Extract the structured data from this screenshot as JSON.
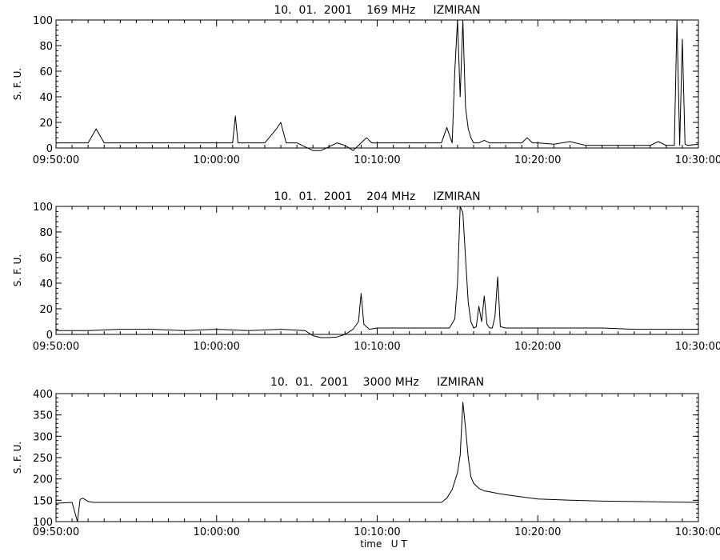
{
  "chart_data": [
    {
      "type": "line",
      "title": "10.  01.  2001    169 MHz     IZMIRAN",
      "ylabel": "S. F. U.",
      "xlabel": "",
      "ylim": [
        0,
        100
      ],
      "yticks": [
        0,
        20,
        40,
        60,
        80,
        100
      ],
      "xlim": [
        "09:50:00",
        "10:30:00"
      ],
      "xtick_labels": [
        "09:50:00",
        "10:00:00",
        "10:10:00",
        "10:20:00",
        "10:30:00"
      ],
      "series": [
        {
          "x": [
            "09:50:00",
            "09:51:00",
            "09:52:00",
            "09:52:30",
            "09:53:00",
            "09:55:00",
            "10:00:00",
            "10:01:00",
            "10:01:10",
            "10:01:20",
            "10:03:00",
            "10:03:40",
            "10:04:00",
            "10:04:20",
            "10:05:00",
            "10:05:30",
            "10:06:00",
            "10:06:30",
            "10:07:00",
            "10:07:30",
            "10:08:00",
            "10:08:30",
            "10:09:00",
            "10:09:20",
            "10:09:40",
            "10:10:00",
            "10:12:00",
            "10:14:00",
            "10:14:20",
            "10:14:40",
            "10:14:50",
            "10:15:00",
            "10:15:10",
            "10:15:20",
            "10:15:30",
            "10:15:40",
            "10:15:50",
            "10:16:00",
            "10:16:20",
            "10:16:40",
            "10:17:00",
            "10:18:00",
            "10:19:00",
            "10:19:20",
            "10:19:40",
            "10:20:00",
            "10:21:00",
            "10:22:00",
            "10:23:00",
            "10:25:00",
            "10:27:00",
            "10:27:30",
            "10:28:00",
            "10:28:30",
            "10:28:40",
            "10:28:50",
            "10:29:00",
            "10:29:10",
            "10:29:20",
            "10:30:00"
          ],
          "values": [
            4,
            4,
            4,
            15,
            4,
            4,
            4,
            4,
            25,
            4,
            4,
            14,
            20,
            4,
            4,
            1,
            -2,
            -2,
            1,
            4,
            2,
            -2,
            4,
            8,
            4,
            4,
            4,
            4,
            16,
            4,
            60,
            100,
            40,
            100,
            32,
            15,
            8,
            4,
            4,
            6,
            4,
            4,
            4,
            8,
            4,
            4,
            3,
            5,
            2,
            2,
            2,
            5,
            2,
            2,
            100,
            2,
            85,
            3,
            2,
            3
          ]
        }
      ]
    },
    {
      "type": "line",
      "title": "10.  01.  2001    204 MHz     IZMIRAN",
      "ylabel": "S. F. U.",
      "xlabel": "",
      "ylim": [
        0,
        100
      ],
      "yticks": [
        0,
        20,
        40,
        60,
        80,
        100
      ],
      "xlim": [
        "09:50:00",
        "10:30:00"
      ],
      "xtick_labels": [
        "09:50:00",
        "10:00:00",
        "10:10:00",
        "10:20:00",
        "10:30:00"
      ],
      "series": [
        {
          "x": [
            "09:50:00",
            "09:52:00",
            "09:54:00",
            "09:56:00",
            "09:58:00",
            "10:00:00",
            "10:02:00",
            "10:04:00",
            "10:05:30",
            "10:06:00",
            "10:06:30",
            "10:07:00",
            "10:07:30",
            "10:08:00",
            "10:08:30",
            "10:08:50",
            "10:09:00",
            "10:09:10",
            "10:09:30",
            "10:10:00",
            "10:11:00",
            "10:12:00",
            "10:13:00",
            "10:14:00",
            "10:14:30",
            "10:14:50",
            "10:15:00",
            "10:15:10",
            "10:15:20",
            "10:15:30",
            "10:15:40",
            "10:15:50",
            "10:16:00",
            "10:16:10",
            "10:16:20",
            "10:16:30",
            "10:16:40",
            "10:16:50",
            "10:17:00",
            "10:17:10",
            "10:17:20",
            "10:17:30",
            "10:17:40",
            "10:18:00",
            "10:19:00",
            "10:20:00",
            "10:22:00",
            "10:24:00",
            "10:26:00",
            "10:28:00",
            "10:30:00"
          ],
          "values": [
            3,
            3,
            4,
            4,
            3,
            4,
            3,
            4,
            3,
            -1,
            -3,
            -3,
            -2,
            0,
            4,
            10,
            32,
            8,
            4,
            5,
            5,
            5,
            5,
            5,
            5,
            12,
            40,
            100,
            95,
            60,
            25,
            10,
            5,
            6,
            22,
            10,
            30,
            8,
            5,
            5,
            14,
            45,
            6,
            5,
            5,
            5,
            5,
            5,
            4,
            4,
            4
          ]
        }
      ]
    },
    {
      "type": "line",
      "title": "10.  01.  2001    3000 MHz     IZMIRAN",
      "ylabel": "S. F. U.",
      "xlabel": "time   U T",
      "ylim": [
        100,
        400
      ],
      "yticks": [
        100,
        150,
        200,
        250,
        300,
        350,
        400
      ],
      "xlim": [
        "09:50:00",
        "10:30:00"
      ],
      "xtick_labels": [
        "09:50:00",
        "10:00:00",
        "10:10:00",
        "10:20:00",
        "10:30:00"
      ],
      "series": [
        {
          "x": [
            "09:50:00",
            "09:51:00",
            "09:51:20",
            "09:51:30",
            "09:51:40",
            "09:52:00",
            "09:52:20",
            "09:53:00",
            "09:56:00",
            "10:00:00",
            "10:05:00",
            "10:10:00",
            "10:14:00",
            "10:14:20",
            "10:14:40",
            "10:15:00",
            "10:15:10",
            "10:15:20",
            "10:15:30",
            "10:15:40",
            "10:15:50",
            "10:16:00",
            "10:16:20",
            "10:16:40",
            "10:17:00",
            "10:17:30",
            "10:18:00",
            "10:19:00",
            "10:20:00",
            "10:22:00",
            "10:24:00",
            "10:26:00",
            "10:28:00",
            "10:30:00"
          ],
          "values": [
            143,
            145,
            100,
            152,
            155,
            147,
            145,
            145,
            145,
            145,
            145,
            145,
            145,
            155,
            175,
            215,
            255,
            380,
            320,
            250,
            205,
            190,
            178,
            172,
            170,
            166,
            163,
            158,
            153,
            150,
            148,
            147,
            146,
            145
          ]
        }
      ]
    }
  ]
}
